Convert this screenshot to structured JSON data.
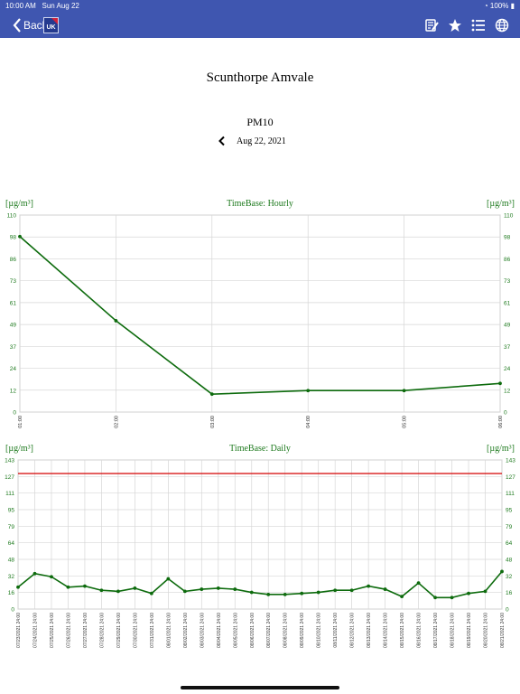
{
  "status": {
    "time": "10:00 AM",
    "date": "Sun Aug 22",
    "battery": "100%"
  },
  "nav": {
    "back_label": "Back",
    "logo_text": "UK",
    "icons": [
      "edit-icon",
      "star-icon",
      "list-icon",
      "globe-icon"
    ]
  },
  "station": "Scunthorpe Amvale",
  "pollutant": "PM10",
  "date": "Aug 22, 2021",
  "colors": {
    "navbar": "#3f56b0",
    "line": "#0d6b0d",
    "limit": "#d40000",
    "axis_text": "#1e7a1e"
  },
  "hourly": {
    "unit_left": "[µg/m³]",
    "unit_right": "[µg/m³]",
    "timebase": "TimeBase: Hourly",
    "chart_data": {
      "type": "line",
      "categories": [
        "01:00",
        "02:00",
        "03:00",
        "04:00",
        "05:00",
        "06:00"
      ],
      "values": [
        98,
        51,
        10,
        12,
        12,
        16
      ],
      "ylim": [
        0,
        110
      ],
      "yticks": [
        "0",
        "12",
        "24",
        "37",
        "49",
        "61",
        "73",
        "86",
        "98",
        "110"
      ],
      "grid": true
    }
  },
  "daily": {
    "unit_left": "[µg/m³]",
    "unit_right": "[µg/m³]",
    "timebase": "TimeBase: Daily",
    "chart_data": {
      "type": "line",
      "categories": [
        "07/23/2021 24:00",
        "07/24/2021 24:00",
        "07/25/2021 24:00",
        "07/26/2021 24:00",
        "07/27/2021 24:00",
        "07/28/2021 24:00",
        "07/29/2021 24:00",
        "07/30/2021 24:00",
        "07/31/2021 24:00",
        "08/01/2021 24:00",
        "08/02/2021 24:00",
        "08/03/2021 24:00",
        "08/04/2021 24:00",
        "08/05/2021 24:00",
        "08/06/2021 24:00",
        "08/07/2021 24:00",
        "08/08/2021 24:00",
        "08/09/2021 24:00",
        "08/10/2021 24:00",
        "08/11/2021 24:00",
        "08/12/2021 24:00",
        "08/13/2021 24:00",
        "08/14/2021 24:00",
        "08/15/2021 24:00",
        "08/16/2021 24:00",
        "08/17/2021 24:00",
        "08/18/2021 24:00",
        "08/19/2021 24:00",
        "08/20/2021 24:00",
        "08/21/2021 24:00"
      ],
      "values": [
        21,
        34,
        31,
        21,
        22,
        18,
        17,
        20,
        15,
        29,
        17,
        19,
        20,
        19,
        16,
        14,
        14,
        15,
        16,
        18,
        18,
        22,
        19,
        12,
        25,
        11,
        11,
        15,
        17,
        36
      ],
      "limit": 130,
      "ylim": [
        0,
        143
      ],
      "yticks_left": [
        "0",
        "16",
        "32",
        "48",
        "64",
        "79",
        "95",
        "111",
        "127",
        "143"
      ],
      "yticks_right": [
        "0",
        "16",
        "32",
        "48",
        "64",
        "79",
        "95",
        "111",
        "127",
        "143"
      ],
      "grid": true
    }
  }
}
